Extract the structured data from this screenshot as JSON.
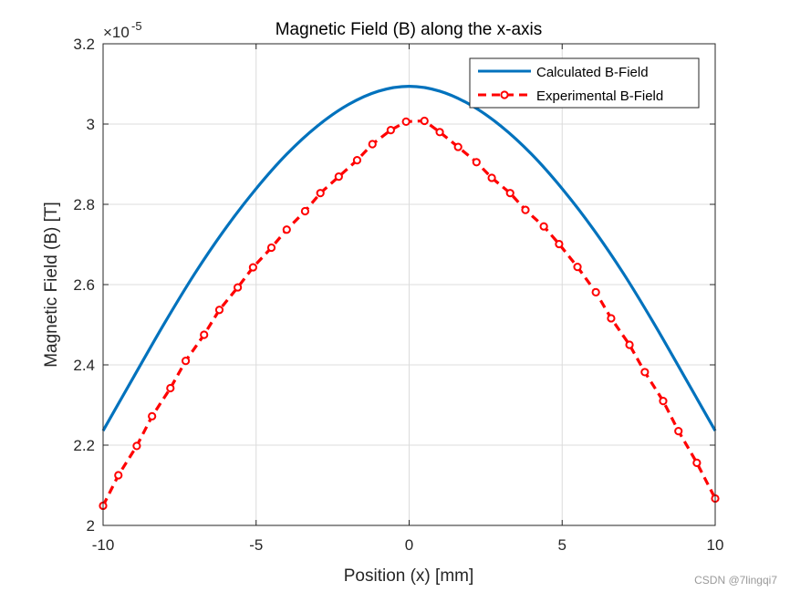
{
  "chart_data": {
    "type": "line",
    "title": "Magnetic Field (B) along the x-axis",
    "xlabel": "Position (x) [mm]",
    "ylabel": "Magnetic Field (B) [T]",
    "exponent_label": "×10",
    "exponent_power": "-5",
    "xlim": [
      -10,
      10
    ],
    "ylim": [
      2.0,
      3.2
    ],
    "xticks": [
      -10,
      -5,
      0,
      5,
      10
    ],
    "xtick_labels": [
      "-10",
      "-5",
      "0",
      "5",
      "10"
    ],
    "yticks": [
      2.0,
      2.2,
      2.4,
      2.6,
      2.8,
      3.0,
      3.2
    ],
    "ytick_labels": [
      "2",
      "2.2",
      "2.4",
      "2.6",
      "2.8",
      "3",
      "3.2"
    ],
    "grid": true,
    "legend_position": "top-right",
    "series": [
      {
        "name": "Calculated B-Field",
        "color": "#0072BD",
        "style": "solid",
        "x": [
          -10,
          -9,
          -8,
          -7,
          -6,
          -5,
          -4,
          -3,
          -2,
          -1,
          0,
          1,
          2,
          3,
          4,
          5,
          6,
          7,
          8,
          9,
          10
        ],
        "y": [
          2.236,
          2.37,
          2.503,
          2.628,
          2.74,
          2.839,
          2.925,
          2.995,
          3.048,
          3.082,
          3.094,
          3.082,
          3.048,
          2.995,
          2.925,
          2.839,
          2.74,
          2.628,
          2.503,
          2.37,
          2.236
        ]
      },
      {
        "name": "Experimental B-Field",
        "color": "#FF0000",
        "style": "dashed-circle-markers",
        "x": [
          -10,
          -9.5,
          -8.9,
          -8.4,
          -7.8,
          -7.3,
          -6.7,
          -6.2,
          -5.6,
          -5.1,
          -4.5,
          -4.0,
          -3.4,
          -2.9,
          -2.3,
          -1.7,
          -1.2,
          -0.6,
          -0.1,
          0.5,
          1.0,
          1.6,
          2.2,
          2.7,
          3.3,
          3.8,
          4.4,
          4.9,
          5.5,
          6.1,
          6.6,
          7.2,
          7.7,
          8.3,
          8.8,
          9.4,
          10
        ],
        "y": [
          2.049,
          2.125,
          2.198,
          2.272,
          2.342,
          2.41,
          2.475,
          2.537,
          2.593,
          2.643,
          2.692,
          2.737,
          2.783,
          2.828,
          2.869,
          2.91,
          2.95,
          2.985,
          3.006,
          3.008,
          2.98,
          2.943,
          2.905,
          2.866,
          2.828,
          2.786,
          2.745,
          2.701,
          2.644,
          2.581,
          2.516,
          2.45,
          2.382,
          2.31,
          2.235,
          2.156,
          2.067
        ]
      }
    ]
  },
  "watermark": "CSDN @7lingqi7"
}
